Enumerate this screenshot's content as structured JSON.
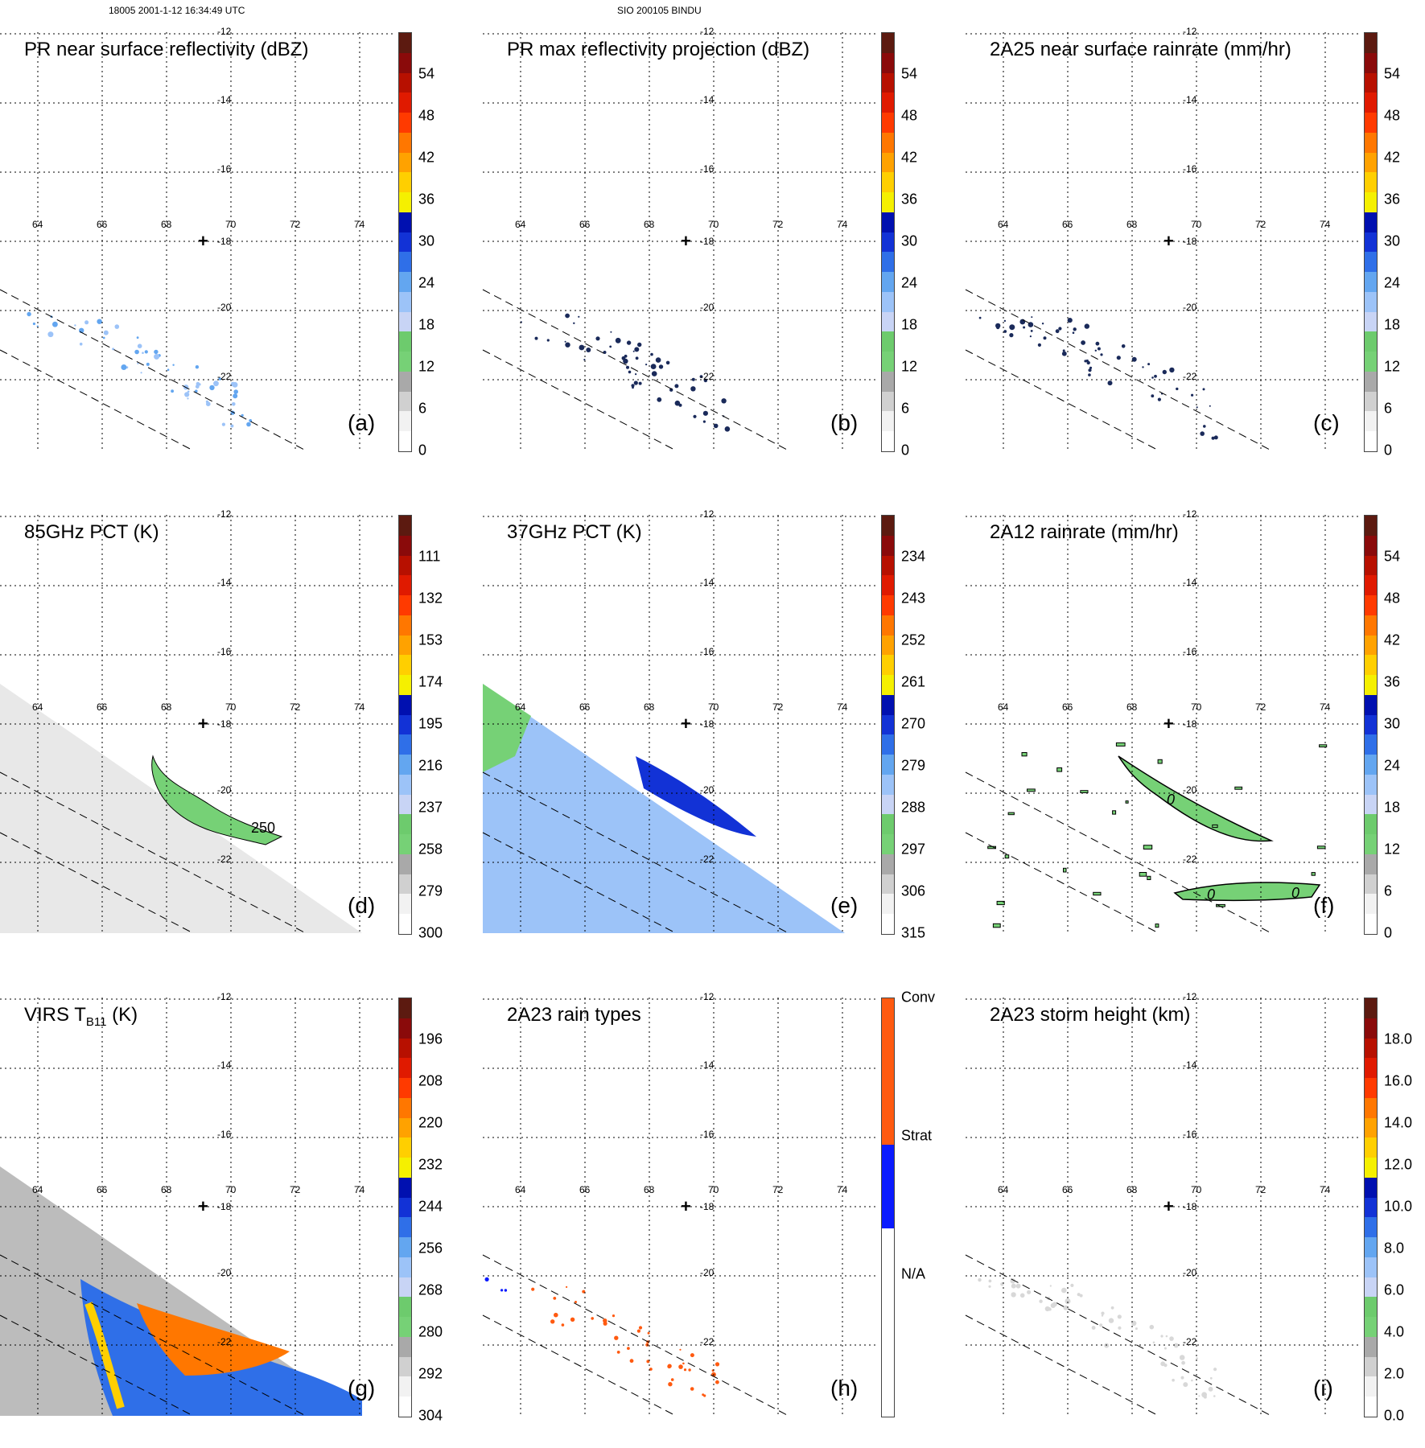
{
  "header": {
    "left": "18005 2001-1-12 16:34:49 UTC",
    "center": "SIO 200105 BINDU"
  },
  "map_axes": {
    "lon_ticks": [
      "64",
      "66",
      "68",
      "70",
      "72",
      "74"
    ],
    "lat_ticks": [
      "-12",
      "-14",
      "-16",
      "-18",
      "-20",
      "-22"
    ],
    "center_marker": "+"
  },
  "colorbars": {
    "standard_colors": [
      "#ffffff",
      "#f2f2f2",
      "#d0d0d0",
      "#a9a9a9",
      "#76d176",
      "#6dcb6d",
      "#c8d4f5",
      "#9cc3f8",
      "#63a6f0",
      "#2f6fe8",
      "#1232d6",
      "#0010b0",
      "#f5f000",
      "#ffcf00",
      "#ffa200",
      "#ff7700",
      "#ff3a00",
      "#e01a00",
      "#b71000",
      "#8a0a0a",
      "#5c1a10"
    ],
    "rain_type_colors": [
      "#ffffff",
      "#0a1aff",
      "#ff5a10"
    ]
  },
  "chart_data": [
    {
      "type": "heatmap",
      "panel": "a",
      "title": "PR near surface reflectivity (dBZ)",
      "colorbar_ticks": [
        "54",
        "48",
        "42",
        "36",
        "30",
        "24",
        "18",
        "12",
        "6",
        "0"
      ],
      "field": "sparse_swath"
    },
    {
      "type": "heatmap",
      "panel": "b",
      "title": "PR max reflectivity projection (dBZ)",
      "colorbar_ticks": [
        "54",
        "48",
        "42",
        "36",
        "30",
        "24",
        "18",
        "12",
        "6",
        "0"
      ],
      "field": "sparse_contours"
    },
    {
      "type": "heatmap",
      "panel": "c",
      "title": "2A25 near surface rainrate (mm/hr)",
      "colorbar_ticks": [
        "54",
        "48",
        "42",
        "36",
        "30",
        "24",
        "18",
        "12",
        "6",
        "0"
      ],
      "field": "sparse_contours"
    },
    {
      "type": "heatmap",
      "panel": "d",
      "title": "85GHz PCT (K)",
      "colorbar_ticks": [
        "111",
        "132",
        "153",
        "174",
        "195",
        "216",
        "237",
        "258",
        "279",
        "300"
      ],
      "contour_label": "250",
      "field": "gray_swath_green_band"
    },
    {
      "type": "heatmap",
      "panel": "e",
      "title": "37GHz PCT (K)",
      "colorbar_ticks": [
        "234",
        "243",
        "252",
        "261",
        "270",
        "279",
        "288",
        "297",
        "306",
        "315"
      ],
      "field": "blue_swath"
    },
    {
      "type": "heatmap",
      "panel": "f",
      "title": "2A12 rainrate (mm/hr)",
      "colorbar_ticks": [
        "54",
        "48",
        "42",
        "36",
        "30",
        "24",
        "18",
        "12",
        "6",
        "0"
      ],
      "contour_labels": [
        "0",
        "0",
        "0"
      ],
      "field": "green_patches"
    },
    {
      "type": "heatmap",
      "panel": "g",
      "title_main": "VIRS T",
      "title_sub": "B11",
      "title_unit": "(K)",
      "colorbar_ticks": [
        "196",
        "208",
        "220",
        "232",
        "244",
        "256",
        "268",
        "280",
        "292",
        "304"
      ],
      "field": "ir_swath"
    },
    {
      "type": "heatmap",
      "panel": "h",
      "title": "2A23 rain types",
      "colorbar_ticks": [
        "Conv",
        "Strat",
        "N/A"
      ],
      "field": "rain_types"
    },
    {
      "type": "heatmap",
      "panel": "i",
      "title": "2A23 storm height (km)",
      "colorbar_ticks": [
        "18.0",
        "16.0",
        "14.0",
        "12.0",
        "10.0",
        "8.0",
        "6.0",
        "4.0",
        "2.0",
        "0.0"
      ],
      "field": "faint_swath"
    }
  ],
  "panel_labels": [
    "(a)",
    "(b)",
    "(c)",
    "(d)",
    "(e)",
    "(f)",
    "(g)",
    "(h)",
    "(i)"
  ]
}
